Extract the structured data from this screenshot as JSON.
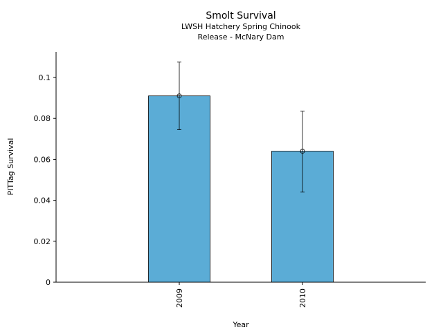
{
  "chart_data": {
    "type": "bar",
    "title": "Smolt Survival",
    "subtitle_lines": [
      "LWSH Hatchery Spring Chinook",
      "Release - McNary Dam"
    ],
    "xlabel": "Year",
    "ylabel": "PITTag Survival",
    "categories": [
      "2009",
      "2010"
    ],
    "values": [
      0.091,
      0.064
    ],
    "error_low": [
      0.0745,
      0.044
    ],
    "error_high": [
      0.1075,
      0.0835
    ],
    "ylim": [
      0,
      0.1125
    ],
    "yticks": [
      0,
      0.02,
      0.04,
      0.06,
      0.08,
      0.1
    ],
    "ytick_labels": [
      "0",
      "0.02",
      "0.04",
      "0.06",
      "0.08",
      "0.1"
    ],
    "bar_color": "#5bacd6",
    "grid": false,
    "legend": "none"
  }
}
